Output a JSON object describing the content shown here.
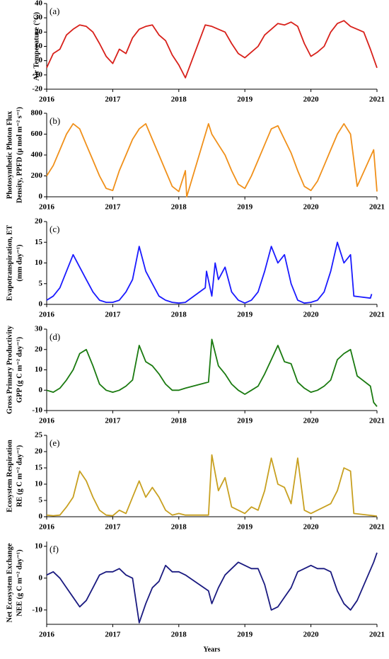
{
  "chart_data": [
    {
      "type": "line",
      "label": "(a)",
      "ylabel": [
        "Air Temperature (°C)"
      ],
      "color": "#d8201a",
      "x": [
        2016.0,
        2016.1,
        2016.2,
        2016.3,
        2016.4,
        2016.5,
        2016.6,
        2016.7,
        2016.8,
        2016.9,
        2017.0,
        2017.1,
        2017.2,
        2017.3,
        2017.4,
        2017.5,
        2017.6,
        2017.7,
        2017.8,
        2017.9,
        2018.0,
        2018.1,
        2018.4,
        2018.5,
        2018.6,
        2018.7,
        2018.8,
        2018.9,
        2019.0,
        2019.1,
        2019.2,
        2019.3,
        2019.4,
        2019.5,
        2019.6,
        2019.7,
        2019.8,
        2019.9,
        2020.0,
        2020.1,
        2020.2,
        2020.3,
        2020.4,
        2020.5,
        2020.6,
        2020.7,
        2020.8,
        2020.9,
        2021.0
      ],
      "values": [
        -5,
        5,
        8,
        18,
        22,
        25,
        24,
        20,
        12,
        3,
        -2,
        8,
        5,
        16,
        22,
        24,
        25,
        18,
        14,
        4,
        -3,
        -12,
        25,
        24,
        22,
        20,
        12,
        5,
        2,
        6,
        10,
        18,
        22,
        26,
        25,
        27,
        24,
        12,
        3,
        6,
        10,
        20,
        26,
        28,
        24,
        22,
        20,
        8,
        -5
      ],
      "xlim": [
        2016,
        2021
      ],
      "xticks": [
        2016,
        2017,
        2018,
        2019,
        2020,
        2021
      ],
      "ylim": [
        -20,
        40
      ],
      "yticks": [
        -20,
        -10,
        0,
        10,
        20,
        30,
        40
      ]
    },
    {
      "type": "line",
      "label": "(b)",
      "ylabel": [
        "Photosynthetic Photon Flux",
        "Density, PPFD (μ mol m⁻² s⁻¹)"
      ],
      "color": "#f0901a",
      "x": [
        2016.0,
        2016.1,
        2016.2,
        2016.3,
        2016.4,
        2016.5,
        2016.6,
        2016.7,
        2016.8,
        2016.9,
        2017.0,
        2017.1,
        2017.2,
        2017.3,
        2017.4,
        2017.5,
        2017.6,
        2017.7,
        2017.8,
        2017.9,
        2018.0,
        2018.1,
        2018.12,
        2018.45,
        2018.5,
        2018.6,
        2018.7,
        2018.8,
        2018.9,
        2019.0,
        2019.1,
        2019.2,
        2019.3,
        2019.4,
        2019.5,
        2019.6,
        2019.7,
        2019.8,
        2019.9,
        2020.0,
        2020.1,
        2020.2,
        2020.3,
        2020.4,
        2020.5,
        2020.6,
        2020.7,
        2020.95,
        2021.0
      ],
      "values": [
        200,
        300,
        450,
        600,
        700,
        650,
        500,
        350,
        200,
        80,
        60,
        250,
        400,
        550,
        650,
        700,
        550,
        400,
        250,
        100,
        50,
        250,
        0,
        700,
        600,
        500,
        400,
        250,
        120,
        80,
        200,
        350,
        500,
        650,
        680,
        550,
        420,
        250,
        100,
        60,
        150,
        300,
        450,
        600,
        700,
        600,
        100,
        450,
        50
      ],
      "xlim": [
        2016,
        2021
      ],
      "xticks": [
        2016,
        2017,
        2018,
        2019,
        2020,
        2021
      ],
      "ylim": [
        0,
        800
      ],
      "yticks": [
        0,
        200,
        400,
        600,
        800
      ]
    },
    {
      "type": "line",
      "label": "(c)",
      "ylabel": [
        "Evapotranspiration, ET",
        "(mm day⁻¹)"
      ],
      "color": "#1a1aff",
      "x": [
        2016.0,
        2016.1,
        2016.2,
        2016.3,
        2016.4,
        2016.5,
        2016.6,
        2016.7,
        2016.8,
        2016.9,
        2017.0,
        2017.1,
        2017.2,
        2017.3,
        2017.4,
        2017.5,
        2017.6,
        2017.7,
        2017.8,
        2017.9,
        2018.0,
        2018.1,
        2018.4,
        2018.42,
        2018.5,
        2018.55,
        2018.6,
        2018.7,
        2018.8,
        2018.9,
        2019.0,
        2019.1,
        2019.2,
        2019.3,
        2019.4,
        2019.5,
        2019.6,
        2019.7,
        2019.8,
        2019.9,
        2020.0,
        2020.1,
        2020.2,
        2020.3,
        2020.4,
        2020.5,
        2020.6,
        2020.65,
        2020.9,
        2020.92
      ],
      "values": [
        1,
        2,
        4,
        8,
        12,
        9,
        6,
        3,
        1,
        0.5,
        0.5,
        1,
        3,
        6,
        14,
        8,
        5,
        2,
        1,
        0.5,
        0.3,
        0.5,
        4,
        8,
        2,
        10,
        6,
        9,
        3,
        1,
        0.3,
        1,
        3,
        8,
        14,
        10,
        12,
        5,
        1,
        0.3,
        0.5,
        1,
        3,
        8,
        15,
        10,
        12,
        2,
        1.5,
        2.5
      ],
      "xlim": [
        2016,
        2021
      ],
      "xticks": [
        2016,
        2017,
        2018,
        2019,
        2020,
        2021
      ],
      "ylim": [
        0,
        20
      ],
      "yticks": [
        0,
        5,
        10,
        15,
        20
      ]
    },
    {
      "type": "line",
      "label": "(d)",
      "ylabel": [
        "Gross Primary Productivity",
        "GPP (g C m⁻² day⁻¹)"
      ],
      "color": "#1a7a10",
      "x": [
        2016.0,
        2016.1,
        2016.2,
        2016.3,
        2016.4,
        2016.5,
        2016.6,
        2016.7,
        2016.8,
        2016.9,
        2017.0,
        2017.1,
        2017.2,
        2017.3,
        2017.4,
        2017.5,
        2017.6,
        2017.7,
        2017.8,
        2017.9,
        2018.0,
        2018.1,
        2018.45,
        2018.5,
        2018.6,
        2018.7,
        2018.8,
        2018.9,
        2019.0,
        2019.1,
        2019.2,
        2019.3,
        2019.4,
        2019.5,
        2019.6,
        2019.7,
        2019.8,
        2019.9,
        2020.0,
        2020.1,
        2020.2,
        2020.3,
        2020.4,
        2020.5,
        2020.6,
        2020.7,
        2020.9,
        2020.95,
        2021.0
      ],
      "values": [
        0,
        -1,
        1,
        5,
        10,
        18,
        20,
        12,
        3,
        0,
        -1,
        0,
        2,
        5,
        22,
        14,
        12,
        8,
        3,
        0,
        0,
        1,
        4,
        25,
        12,
        8,
        3,
        0,
        -2,
        0,
        2,
        8,
        15,
        22,
        14,
        13,
        4,
        1,
        -1,
        0,
        2,
        5,
        15,
        18,
        20,
        7,
        2,
        -6,
        -8
      ],
      "xlim": [
        2016,
        2021
      ],
      "xticks": [
        2016,
        2017,
        2018,
        2019,
        2020,
        2021
      ],
      "ylim": [
        -10,
        30
      ],
      "yticks": [
        -10,
        0,
        10,
        20,
        30
      ]
    },
    {
      "type": "line",
      "label": "(e)",
      "ylabel": [
        "Ecosystem  Respiration",
        "RE (g C m⁻² day⁻¹)"
      ],
      "color": "#c8a020",
      "x": [
        2016.0,
        2016.1,
        2016.2,
        2016.3,
        2016.4,
        2016.5,
        2016.6,
        2016.7,
        2016.8,
        2016.9,
        2017.0,
        2017.1,
        2017.2,
        2017.3,
        2017.4,
        2017.5,
        2017.6,
        2017.7,
        2017.8,
        2017.9,
        2018.0,
        2018.1,
        2018.45,
        2018.5,
        2018.6,
        2018.7,
        2018.8,
        2018.9,
        2019.0,
        2019.1,
        2019.2,
        2019.3,
        2019.4,
        2019.5,
        2019.6,
        2019.7,
        2019.8,
        2019.9,
        2020.0,
        2020.1,
        2020.2,
        2020.3,
        2020.4,
        2020.5,
        2020.6,
        2020.65,
        2021.0
      ],
      "values": [
        0.5,
        0.3,
        0.5,
        3,
        6,
        14,
        11,
        6,
        2,
        0.5,
        0.3,
        2,
        1,
        6,
        11,
        6,
        9,
        6,
        2,
        0.5,
        1,
        0.5,
        0.5,
        19,
        8,
        12,
        3,
        2,
        1,
        3,
        2,
        8,
        18,
        10,
        9,
        4,
        18,
        2,
        1,
        2,
        3,
        4,
        8,
        15,
        14,
        1,
        0.2
      ],
      "xlim": [
        2016,
        2021
      ],
      "xticks": [
        2016,
        2017,
        2018,
        2019,
        2020,
        2021
      ],
      "ylim": [
        0,
        25
      ],
      "yticks": [
        0,
        5,
        10,
        15,
        20,
        25
      ]
    },
    {
      "type": "line",
      "label": "(f)",
      "ylabel": [
        "Net Ecosystem Exchange",
        "NEE (g C m⁻² day⁻¹)"
      ],
      "color": "#1a1a80",
      "xlabel": "Years",
      "x": [
        2016.0,
        2016.1,
        2016.2,
        2016.3,
        2016.4,
        2016.5,
        2016.6,
        2016.7,
        2016.8,
        2016.9,
        2017.0,
        2017.1,
        2017.2,
        2017.3,
        2017.4,
        2017.5,
        2017.6,
        2017.7,
        2017.8,
        2017.9,
        2018.0,
        2018.1,
        2018.45,
        2018.5,
        2018.6,
        2018.7,
        2018.8,
        2018.9,
        2019.0,
        2019.1,
        2019.2,
        2019.3,
        2019.4,
        2019.5,
        2019.6,
        2019.7,
        2019.8,
        2019.9,
        2020.0,
        2020.1,
        2020.2,
        2020.3,
        2020.4,
        2020.5,
        2020.6,
        2020.7,
        2020.95,
        2021.0
      ],
      "values": [
        1,
        2,
        0,
        -3,
        -6,
        -9,
        -7,
        -3,
        1,
        2,
        2,
        3,
        1,
        0,
        -14,
        -8,
        -3,
        -1,
        4,
        2,
        2,
        1,
        -4,
        -8,
        -3,
        1,
        3,
        5,
        4,
        3,
        3,
        -2,
        -10,
        -9,
        -6,
        -3,
        2,
        3,
        4,
        3,
        3,
        2,
        -4,
        -8,
        -10,
        -7,
        5,
        8
      ],
      "xlim": [
        2016,
        2021
      ],
      "xticks": [
        2016,
        2017,
        2018,
        2019,
        2020,
        2021
      ],
      "ylim": [
        -14.5,
        11.5
      ],
      "yticks": [
        -10,
        0,
        10
      ]
    }
  ]
}
